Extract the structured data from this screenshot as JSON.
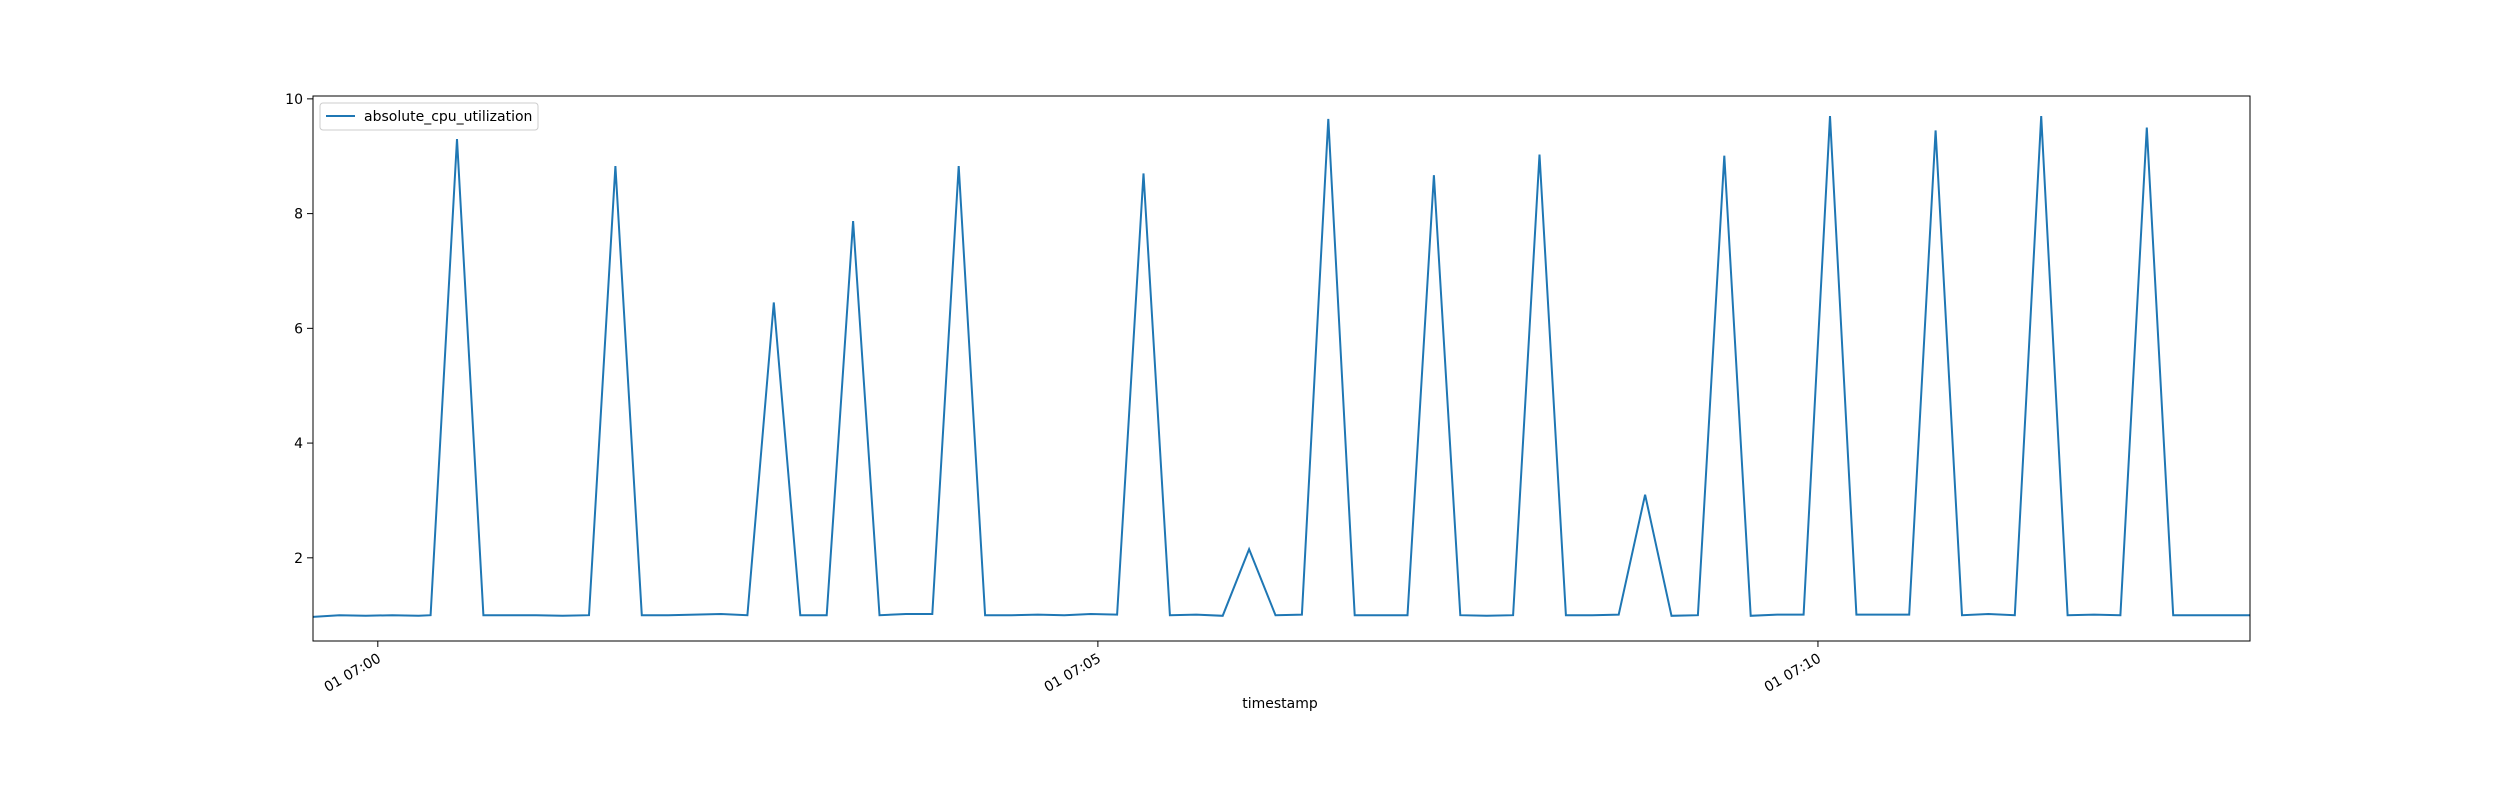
{
  "chart_data": {
    "type": "line",
    "xlabel": "timestamp",
    "ylabel": "",
    "x_unit": "minutes",
    "xlim": [
      "06:59:33",
      "07:13:00"
    ],
    "ylim": [
      0.55,
      10.05
    ],
    "y_ticks": [
      2,
      4,
      6,
      8,
      10
    ],
    "x_ticks": [
      {
        "value": "07:00:00",
        "label": "01 07:00"
      },
      {
        "value": "07:05:00",
        "label": "01 07:05"
      },
      {
        "value": "07:10:00",
        "label": "01 07:10"
      }
    ],
    "legend_position": "top-left",
    "grid": false,
    "series": [
      {
        "name": "absolute_cpu_utilization",
        "color": "#1f77b4",
        "x": [
          "06:59:33",
          "06:59:44",
          "06:59:55",
          "07:00:06",
          "07:00:17",
          "07:00:22",
          "07:00:33",
          "07:00:44",
          "07:00:55",
          "07:01:06",
          "07:01:17",
          "07:01:28",
          "07:01:39",
          "07:01:50",
          "07:02:01",
          "07:02:12",
          "07:02:23",
          "07:02:34",
          "07:02:45",
          "07:02:56",
          "07:03:07",
          "07:03:18",
          "07:03:29",
          "07:03:40",
          "07:03:51",
          "07:04:02",
          "07:04:13",
          "07:04:24",
          "07:04:35",
          "07:04:46",
          "07:04:57",
          "07:05:08",
          "07:05:19",
          "07:05:30",
          "07:05:41",
          "07:05:52",
          "07:06:03",
          "07:06:14",
          "07:06:25",
          "07:06:36",
          "07:06:47",
          "07:06:58",
          "07:07:09",
          "07:07:20",
          "07:07:31",
          "07:07:42",
          "07:07:53",
          "07:08:04",
          "07:08:15",
          "07:08:26",
          "07:08:37",
          "07:08:48",
          "07:08:59",
          "07:09:10",
          "07:09:21",
          "07:09:32",
          "07:09:43",
          "07:09:54",
          "07:10:05",
          "07:10:16",
          "07:10:27",
          "07:10:38",
          "07:10:49",
          "07:11:00",
          "07:11:11",
          "07:11:22",
          "07:11:33",
          "07:11:44",
          "07:11:55",
          "07:12:06",
          "07:12:17",
          "07:12:28",
          "07:12:39",
          "07:12:50",
          "07:13:00"
        ],
        "values": [
          0.97,
          1.0,
          0.99,
          1.0,
          0.99,
          1.0,
          9.3,
          1.0,
          1.0,
          1.0,
          0.99,
          1.0,
          8.83,
          1.0,
          1.0,
          1.01,
          1.02,
          1.0,
          6.45,
          1.0,
          1.0,
          7.87,
          1.0,
          1.02,
          1.02,
          8.83,
          1.0,
          1.0,
          1.01,
          1.0,
          1.02,
          1.01,
          8.7,
          1.0,
          1.01,
          0.99,
          2.15,
          1.0,
          1.01,
          9.65,
          1.0,
          1.0,
          1.0,
          8.67,
          1.0,
          0.99,
          1.0,
          9.03,
          1.0,
          1.0,
          1.01,
          3.1,
          0.99,
          1.0,
          9.01,
          0.99,
          1.01,
          1.01,
          9.7,
          1.01,
          1.01,
          1.01,
          9.45,
          1.0,
          1.02,
          1.0,
          9.7,
          1.0,
          1.01,
          1.0,
          9.5,
          1.0,
          1.0,
          1.0,
          1.0
        ]
      }
    ]
  }
}
